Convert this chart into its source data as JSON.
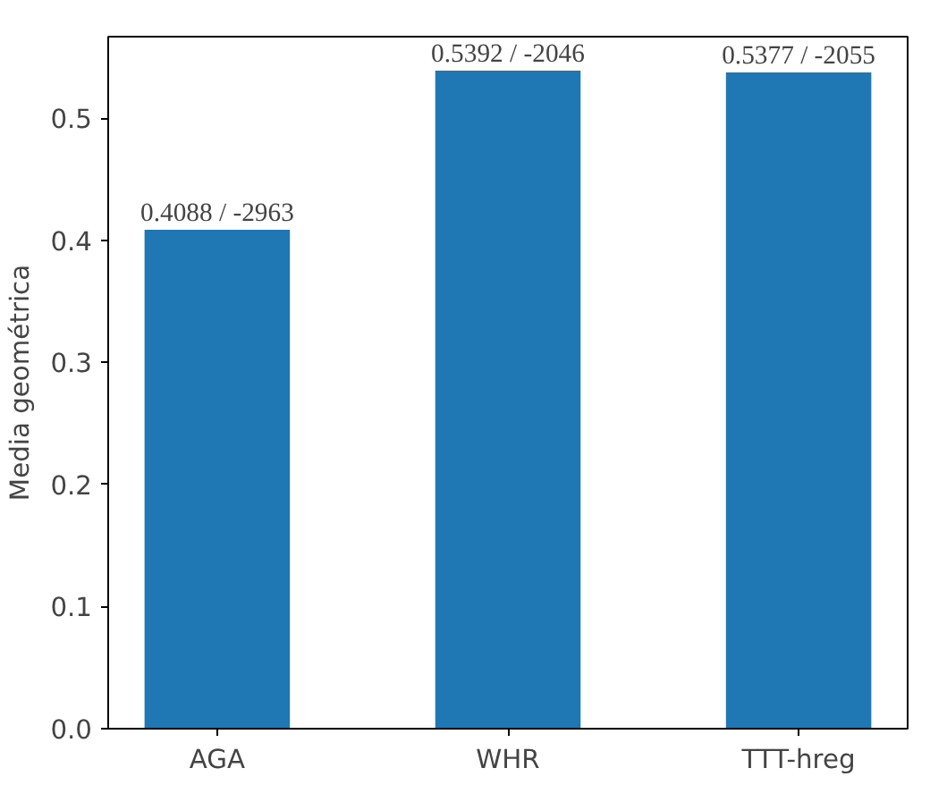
{
  "chart_data": {
    "type": "bar",
    "ylabel": "Media geométrica",
    "categories": [
      "AGA",
      "WHR",
      "TTT-hreg"
    ],
    "values": [
      0.4088,
      0.5392,
      0.5377
    ],
    "color": "#1f77b4",
    "value_labels": [
      "0.4088 / -2963",
      "0.5392 / -2046",
      "0.5377 / -2055"
    ],
    "ylim": [
      0,
      0.567
    ],
    "yticks": [
      {
        "value": 0,
        "label": "0.0"
      },
      {
        "value": 0.1,
        "label": "0.1"
      },
      {
        "value": 0.2,
        "label": "0.2"
      },
      {
        "value": 0.3,
        "label": "0.3"
      },
      {
        "value": 0.4,
        "label": "0.4"
      },
      {
        "value": 0.5,
        "label": "0.5"
      }
    ],
    "grid": false
  }
}
